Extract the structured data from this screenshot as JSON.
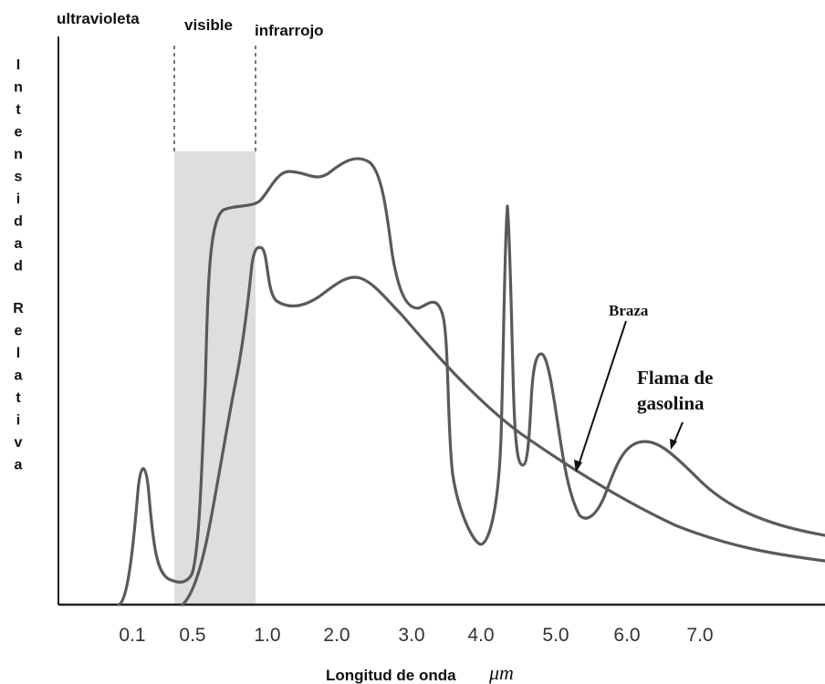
{
  "chart_data": {
    "type": "line",
    "xlabel": "Longitud de onda",
    "x_unit": "μm",
    "ylabel": "Intensidad Relativa",
    "x_ticks": [
      "0.1",
      "0.5",
      "1.0",
      "2.0",
      "3.0",
      "4.0",
      "5.0",
      "6.0",
      "7.0"
    ],
    "regions": [
      {
        "label": "ultravioleta"
      },
      {
        "label": "visible",
        "range": [
          "0.4",
          "0.9"
        ]
      },
      {
        "label": "infrarrojo"
      }
    ],
    "annotations": [
      {
        "text": [
          "Braza"
        ]
      },
      {
        "text": [
          "Flama de",
          "gasolina"
        ]
      }
    ],
    "curves": [
      {
        "annotation": "Flama de gasolina",
        "shape": "peaks near 0.1, 1.4, 2.4, 3.2, 4.3, 4.8, 6.3"
      },
      {
        "annotation": "Braza",
        "shape": "rises at 0.5, peak near 1.0 and 2.2, then decays"
      }
    ]
  }
}
